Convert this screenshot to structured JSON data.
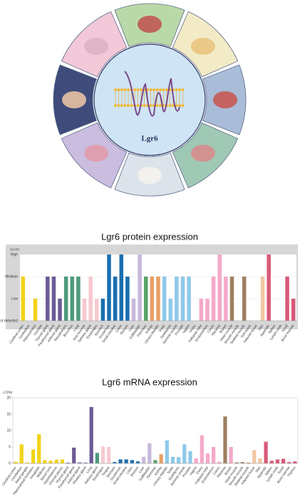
{
  "diagram": {
    "label": "Lgr6"
  },
  "chart_data": [
    {
      "type": "bar",
      "title": "Lgr6 protein expression",
      "y_label": "Score",
      "categories": [
        "Cerebral cortex",
        "Cerebellum",
        "Hippocampus",
        "Caudate",
        "Thyroid gland",
        "Parathyroid gland",
        "Adrenal gland",
        "Nasopharynx",
        "Bronchus",
        "Lung",
        "Oral mucosa",
        "Salivary gland",
        "Esophagus",
        "Stomach",
        "Duodenum",
        "Small intestine",
        "Colon",
        "Rectum",
        "Liver",
        "Gallbladder",
        "Pancreas",
        "Kidney",
        "Urinary bladder",
        "Testis",
        "Epididymis",
        "Seminal vesicle",
        "Prostate",
        "Vagina",
        "Ovary",
        "Fallopian tube",
        "Endometrium",
        "Cervix",
        "Placenta",
        "Breast",
        "Heart muscle",
        "Smooth muscle",
        "Skeletal muscle",
        "Soft tissue",
        "Adipose tissue",
        "Skin",
        "Appendix",
        "Spleen",
        "Lymph node",
        "Tonsil",
        "Bone marrow"
      ],
      "values": [
        2,
        0,
        1,
        0,
        2,
        2,
        1,
        2,
        2,
        2,
        1,
        2,
        1,
        1,
        3,
        2,
        3,
        2,
        1,
        3,
        2,
        2,
        2,
        2,
        1,
        2,
        2,
        2,
        0,
        1,
        1,
        2,
        3,
        2,
        2,
        0,
        2,
        0,
        0,
        2,
        3,
        0,
        0,
        2,
        1
      ],
      "colors": [
        "#f2d21b",
        "#f2d21b",
        "#f2d21b",
        "#f2d21b",
        "#6b5b95",
        "#6b5b95",
        "#6b5b95",
        "#4e9a7a",
        "#4e9a7a",
        "#4e9a7a",
        "#f6c9cf",
        "#f6c9cf",
        "#f6c9cf",
        "#1a6fb0",
        "#1a6fb0",
        "#1a6fb0",
        "#1a6fb0",
        "#1a6fb0",
        "#c7b8dc",
        "#c7b8dc",
        "#5aa469",
        "#e8a065",
        "#e8a065",
        "#8ec9ea",
        "#8ec9ea",
        "#8ec9ea",
        "#8ec9ea",
        "#8ec9ea",
        "#f4a9c8",
        "#f4a9c8",
        "#f4a9c8",
        "#f4a9c8",
        "#f4a9c8",
        "#f4a9c8",
        "#a08060",
        "#a08060",
        "#a08060",
        "#a08060",
        "#f3c7a3",
        "#f3c7a3",
        "#d85a78",
        "#d85a78",
        "#d85a78",
        "#d85a78",
        "#d85a78"
      ],
      "ylim": [
        0,
        3
      ],
      "yticks": [
        {
          "value": 0,
          "label": "Not detected"
        },
        {
          "value": 1,
          "label": "Low"
        },
        {
          "value": 2,
          "label": "Medium"
        },
        {
          "value": 3,
          "label": "High"
        }
      ],
      "grid": true
    },
    {
      "type": "bar",
      "title": "Lgr6 mRNA expression",
      "y_label": "nTPM",
      "categories": [
        "Cerebral cortex",
        "Cerebellum",
        "Basal ganglia",
        "Hippocampal formation",
        "Amygdala",
        "Midbrain",
        "Spinal cord",
        "Hypothalamus",
        "Choroid plexus",
        "Thyroid gland",
        "Parathyroid gland",
        "Adrenal gland",
        "Pituitary gland",
        "Lung",
        "Salivary gland",
        "Esophagus",
        "Tongue",
        "Stomach",
        "Duodenum",
        "Small intestine",
        "Colon",
        "Rectum",
        "Liver",
        "Gallbladder",
        "Pancreas",
        "Kidney",
        "Urinary bladder",
        "Testis",
        "Epididymis",
        "Seminal vesicle",
        "Prostate",
        "Vagina",
        "Ovary",
        "Fallopian tube",
        "Endometrium",
        "Cervix",
        "Placenta",
        "Breast",
        "Heart muscle",
        "Smooth muscle",
        "Skeletal muscle",
        "Adipose tissue",
        "Skin",
        "Appendix",
        "Spleen",
        "Lymph node",
        "Tonsil",
        "Bone marrow",
        "Thymus"
      ],
      "values": [
        0.5,
        5.8,
        0.3,
        4.2,
        8.9,
        1.0,
        0.8,
        1.1,
        1.2,
        0.2,
        4.8,
        0.3,
        0.2,
        17.2,
        3.2,
        5.2,
        5.0,
        0.4,
        1.2,
        1.2,
        1.0,
        0.6,
        2.0,
        6.1,
        1.0,
        2.8,
        7.0,
        2.0,
        1.9,
        5.8,
        3.7,
        1.5,
        8.5,
        3.0,
        5.0,
        0.5,
        14.3,
        5.0,
        0.3,
        0.4,
        0.2,
        4.0,
        1.5,
        6.6,
        0.8,
        1.2,
        1.4,
        0.4,
        0.6
      ],
      "colors": [
        "#f2d21b",
        "#f2d21b",
        "#f2d21b",
        "#f2d21b",
        "#f2d21b",
        "#f2d21b",
        "#f2d21b",
        "#f2d21b",
        "#f2d21b",
        "#6b5b95",
        "#6b5b95",
        "#6b5b95",
        "#6b5b95",
        "#6b5b95",
        "#4e9a7a",
        "#f6c9cf",
        "#f6c9cf",
        "#1a6fb0",
        "#1a6fb0",
        "#1a6fb0",
        "#1a6fb0",
        "#1a6fb0",
        "#c7b8dc",
        "#c7b8dc",
        "#5aa469",
        "#e8a065",
        "#8ec9ea",
        "#8ec9ea",
        "#8ec9ea",
        "#8ec9ea",
        "#8ec9ea",
        "#f4a9c8",
        "#f4a9c8",
        "#f4a9c8",
        "#f4a9c8",
        "#f4a9c8",
        "#a08060",
        "#f4a9c8",
        "#a08060",
        "#a08060",
        "#a08060",
        "#f3c7a3",
        "#f3c7a3",
        "#d85a78",
        "#d85a78",
        "#d85a78",
        "#d85a78",
        "#d85a78",
        "#d85a78"
      ],
      "ylim": [
        0,
        20
      ],
      "yticks": [
        0,
        5,
        10,
        15,
        20
      ],
      "grid": false
    }
  ]
}
